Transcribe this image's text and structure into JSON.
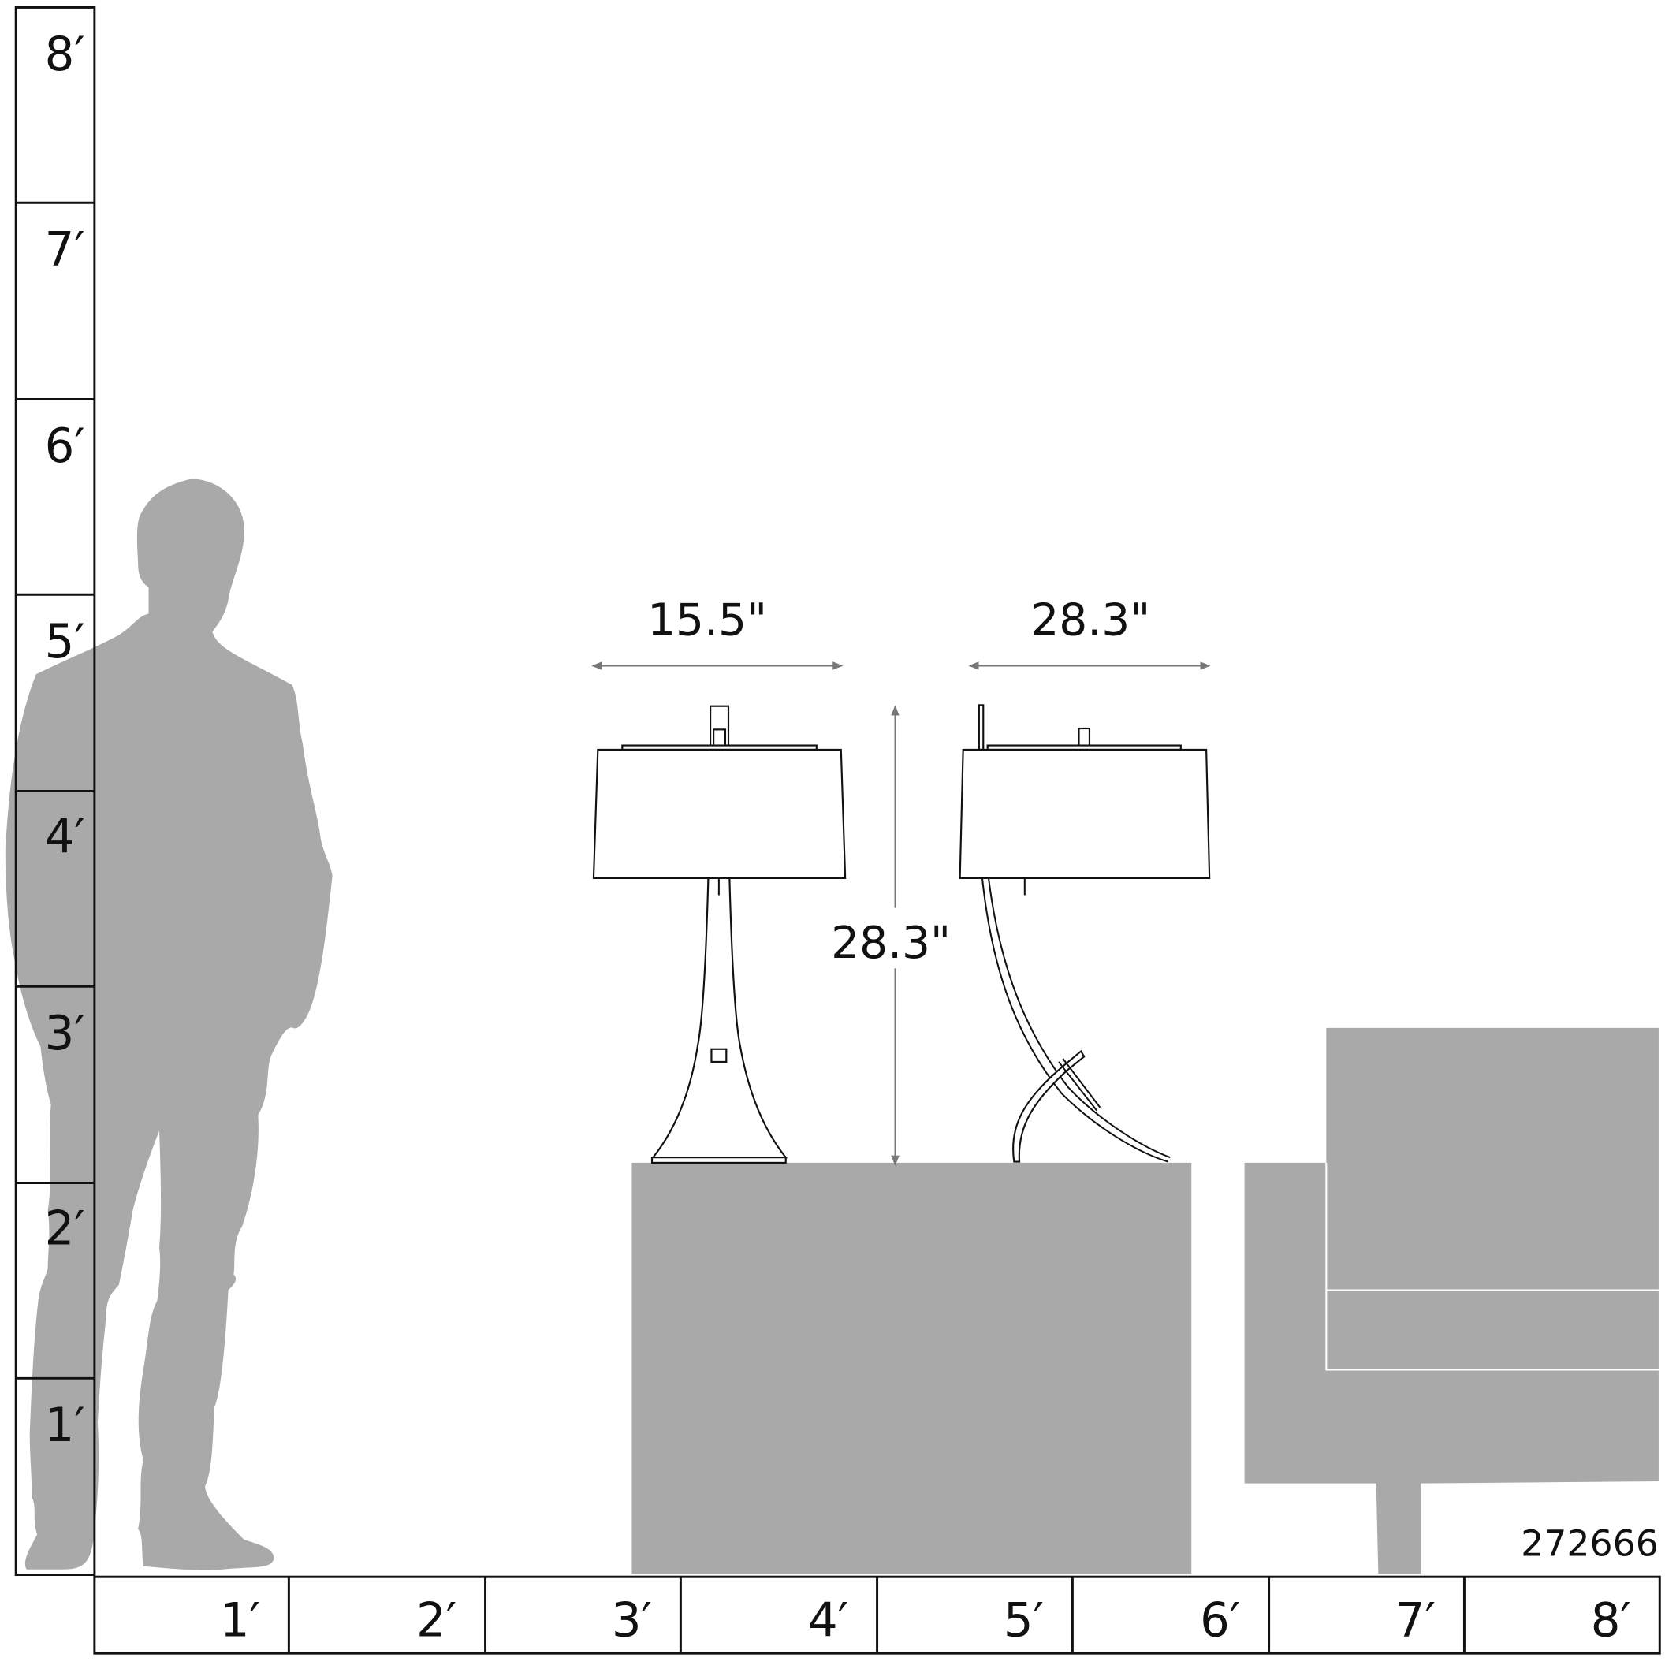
{
  "vertical_ruler": {
    "labels": [
      "8′",
      "7′",
      "6′",
      "5′",
      "4′",
      "3′",
      "2′",
      "1′"
    ]
  },
  "horizontal_ruler": {
    "labels": [
      "1′",
      "2′",
      "3′",
      "4′",
      "5′",
      "6′",
      "7′",
      "8′"
    ]
  },
  "dimensions": {
    "front_width": "15.5\"",
    "side_width": "28.3\"",
    "height": "28.3\""
  },
  "colors": {
    "furniture": "#a9a9a9",
    "silhouette": "#a6a6a6",
    "lines": "#111111"
  },
  "product_number": "272666"
}
